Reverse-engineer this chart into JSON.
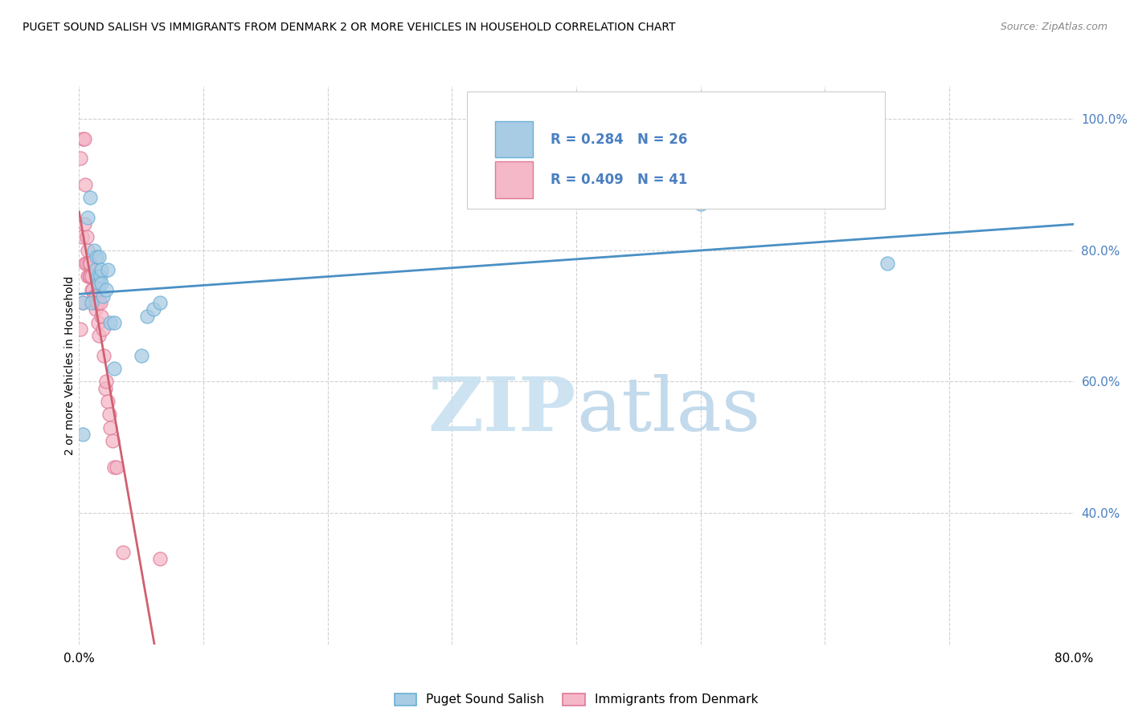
{
  "title": "PUGET SOUND SALISH VS IMMIGRANTS FROM DENMARK 2 OR MORE VEHICLES IN HOUSEHOLD CORRELATION CHART",
  "source": "Source: ZipAtlas.com",
  "ylabel": "2 or more Vehicles in Household",
  "watermark": "ZIPatlas",
  "legend_label1": "Puget Sound Salish",
  "legend_label2": "Immigrants from Denmark",
  "R1": 0.284,
  "N1": 26,
  "R2": 0.409,
  "N2": 41,
  "color_blue": "#a8cce4",
  "color_pink": "#f4b8c8",
  "color_blue_edge": "#6aafd6",
  "color_pink_edge": "#e07898",
  "color_blue_line": "#4a90c4",
  "color_pink_line": "#d06070",
  "color_blue_text": "#4a7fc1",
  "xlim": [
    0.0,
    0.8
  ],
  "ylim": [
    0.2,
    1.05
  ],
  "xticks": [
    0.0,
    0.1,
    0.2,
    0.3,
    0.4,
    0.5,
    0.6,
    0.7,
    0.8
  ],
  "yticks": [
    0.4,
    0.6,
    0.8,
    1.0
  ],
  "ytick_labels": [
    "40.0%",
    "60.0%",
    "80.0%",
    "100.0%"
  ],
  "blue_x": [
    0.003,
    0.003,
    0.007,
    0.009,
    0.01,
    0.012,
    0.013,
    0.014,
    0.015,
    0.016,
    0.016,
    0.017,
    0.018,
    0.018,
    0.019,
    0.022,
    0.023,
    0.025,
    0.028,
    0.028,
    0.05,
    0.055,
    0.06,
    0.065,
    0.5,
    0.65
  ],
  "blue_y": [
    0.52,
    0.72,
    0.85,
    0.88,
    0.72,
    0.8,
    0.77,
    0.79,
    0.76,
    0.79,
    0.75,
    0.76,
    0.75,
    0.77,
    0.73,
    0.74,
    0.77,
    0.69,
    0.69,
    0.62,
    0.64,
    0.7,
    0.71,
    0.72,
    0.87,
    0.78
  ],
  "pink_x": [
    0.001,
    0.001,
    0.002,
    0.003,
    0.003,
    0.004,
    0.004,
    0.005,
    0.005,
    0.006,
    0.006,
    0.007,
    0.007,
    0.008,
    0.008,
    0.009,
    0.009,
    0.01,
    0.01,
    0.011,
    0.012,
    0.013,
    0.013,
    0.014,
    0.015,
    0.015,
    0.016,
    0.017,
    0.018,
    0.019,
    0.02,
    0.021,
    0.022,
    0.023,
    0.024,
    0.025,
    0.027,
    0.028,
    0.03,
    0.035,
    0.065
  ],
  "pink_y": [
    0.68,
    0.94,
    0.82,
    0.97,
    0.72,
    0.97,
    0.84,
    0.9,
    0.78,
    0.78,
    0.82,
    0.76,
    0.8,
    0.76,
    0.78,
    0.76,
    0.78,
    0.74,
    0.76,
    0.74,
    0.73,
    0.71,
    0.73,
    0.72,
    0.69,
    0.72,
    0.67,
    0.72,
    0.7,
    0.68,
    0.64,
    0.59,
    0.6,
    0.57,
    0.55,
    0.53,
    0.51,
    0.47,
    0.47,
    0.34,
    0.33
  ]
}
